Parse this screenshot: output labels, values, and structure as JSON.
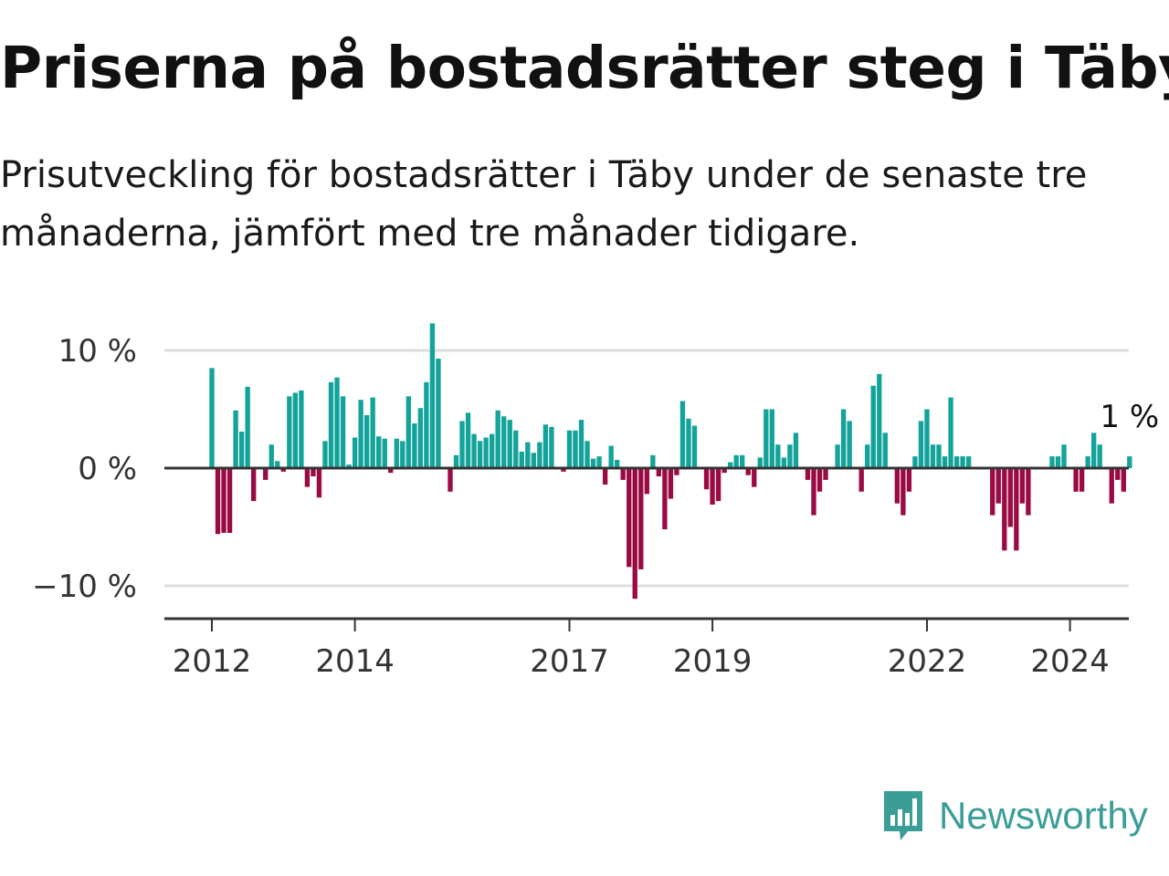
{
  "header": {
    "title": "Priserna på bostadsrätter steg i Täby",
    "subtitle": "Prisutveckling för bostadsrätter i Täby under de senaste tre månaderna, jämfört med tre månader tidigare."
  },
  "brand": {
    "name": "Newsworthy",
    "color": "#3a9d96",
    "logo_icon": "newsworthy-bar-chart-speech-bubble-icon"
  },
  "colors": {
    "positive": "#13a39a",
    "negative": "#9b0b43",
    "grid": "#dddddd",
    "axis": "#333333"
  },
  "chart_data": {
    "type": "bar",
    "title": "",
    "xlabel": "",
    "ylabel": "",
    "ylim": [
      -13,
      13
    ],
    "yticks": [
      {
        "value": 10,
        "label": "10 %"
      },
      {
        "value": 0,
        "label": "0 %"
      },
      {
        "value": -10,
        "label": "−10 %"
      }
    ],
    "xticks": [
      {
        "value": 2012.0,
        "label": "2012"
      },
      {
        "value": 2014.0,
        "label": "2014"
      },
      {
        "value": 2017.0,
        "label": "2017"
      },
      {
        "value": 2019.0,
        "label": "2019"
      },
      {
        "value": 2022.0,
        "label": "2022"
      },
      {
        "value": 2024.0,
        "label": "2024"
      }
    ],
    "grid": true,
    "last_value_label": "1 %",
    "x_start": 2012.0,
    "x_step": 0.08333,
    "values": [
      8.5,
      -5.6,
      -5.5,
      -5.5,
      4.9,
      3.1,
      6.9,
      -2.8,
      0,
      -1,
      2,
      0.6,
      -0.3,
      6.1,
      6.4,
      6.6,
      -1.6,
      -0.7,
      -2.5,
      2.3,
      7.3,
      7.7,
      6.1,
      0.3,
      2.6,
      5.8,
      4.5,
      6.0,
      2.7,
      2.5,
      -0.4,
      2.5,
      2.3,
      6.1,
      3.8,
      5.1,
      7.3,
      12.3,
      9.3,
      0,
      -2,
      1.1,
      4,
      4.7,
      2.9,
      2.3,
      2.6,
      2.9,
      4.9,
      4.4,
      4.1,
      3.2,
      1.4,
      2.2,
      1.3,
      2.2,
      3.7,
      3.5,
      0,
      -0.3,
      3.2,
      3.2,
      4.1,
      2.3,
      0.8,
      1.0,
      -1.4,
      1.9,
      0.7,
      -1,
      -8.4,
      -11.1,
      -8.6,
      -2.2,
      1.1,
      -0.7,
      -5.2,
      -2.6,
      -0.6,
      5.7,
      4.2,
      3.6,
      0,
      -1.8,
      -3.1,
      -2.8,
      -0.4,
      0.5,
      1.1,
      1.1,
      -0.6,
      -1.6,
      0.9,
      5,
      5,
      2,
      0.9,
      2,
      3,
      0,
      -1,
      -4,
      -2,
      -1,
      0,
      2,
      5,
      4,
      0,
      -2,
      2,
      7,
      8,
      3,
      0,
      -3,
      -4,
      -2,
      1,
      4,
      5,
      2,
      2,
      1,
      6,
      1,
      1,
      1,
      0,
      0,
      0,
      -4,
      -3,
      -7,
      -5,
      -7,
      -3,
      -4,
      0,
      0,
      0,
      1,
      1,
      2,
      0,
      -2,
      -2,
      1,
      3,
      2,
      0,
      -3,
      -1,
      -2,
      1
    ]
  }
}
